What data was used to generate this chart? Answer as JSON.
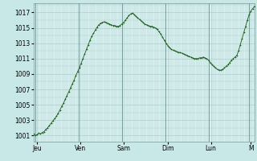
{
  "title": "",
  "background_color": "#c8e8e8",
  "plot_bg_color": "#d8f0f0",
  "line_color": "#1a5c1a",
  "marker_color": "#1a5c1a",
  "grid_color": "#aecece",
  "vline_color": "#7a9a9a",
  "yticks": [
    1001,
    1003,
    1005,
    1007,
    1009,
    1011,
    1013,
    1015,
    1017
  ],
  "ylim": [
    1000.2,
    1018.2
  ],
  "xlim": [
    0,
    122
  ],
  "x_day_labels": [
    {
      "label": "Jeu",
      "x": 2
    },
    {
      "label": "Ven",
      "x": 26
    },
    {
      "label": "Sam",
      "x": 50
    },
    {
      "label": "Dim",
      "x": 74
    },
    {
      "label": "Lun",
      "x": 98
    },
    {
      "label": "M",
      "x": 120
    }
  ],
  "x_vlines": [
    1,
    25,
    49,
    73,
    97,
    119
  ],
  "pressure_data": [
    1001.2,
    1001.0,
    1001.1,
    1001.3,
    1001.2,
    1001.4,
    1001.5,
    1001.8,
    1002.0,
    1002.3,
    1002.6,
    1002.9,
    1003.2,
    1003.5,
    1003.9,
    1004.3,
    1004.8,
    1005.2,
    1005.7,
    1006.2,
    1006.7,
    1007.2,
    1007.7,
    1008.2,
    1008.8,
    1009.3,
    1009.8,
    1010.4,
    1011.0,
    1011.6,
    1012.2,
    1012.8,
    1013.4,
    1013.9,
    1014.3,
    1014.7,
    1015.1,
    1015.4,
    1015.6,
    1015.7,
    1015.8,
    1015.7,
    1015.6,
    1015.5,
    1015.4,
    1015.3,
    1015.3,
    1015.2,
    1015.2,
    1015.3,
    1015.5,
    1015.7,
    1016.0,
    1016.3,
    1016.6,
    1016.8,
    1016.9,
    1016.7,
    1016.5,
    1016.3,
    1016.1,
    1015.9,
    1015.7,
    1015.5,
    1015.4,
    1015.3,
    1015.2,
    1015.2,
    1015.1,
    1015.0,
    1014.8,
    1014.5,
    1014.2,
    1013.8,
    1013.4,
    1013.0,
    1012.7,
    1012.4,
    1012.2,
    1012.1,
    1012.0,
    1011.9,
    1011.8,
    1011.8,
    1011.7,
    1011.6,
    1011.5,
    1011.4,
    1011.3,
    1011.2,
    1011.1,
    1011.0,
    1011.0,
    1011.0,
    1011.1,
    1011.1,
    1011.2,
    1011.1,
    1011.0,
    1010.8,
    1010.5,
    1010.2,
    1010.0,
    1009.8,
    1009.6,
    1009.5,
    1009.5,
    1009.6,
    1009.8,
    1010.0,
    1010.2,
    1010.5,
    1010.8,
    1011.0,
    1011.2,
    1011.4,
    1012.0,
    1012.8,
    1013.6,
    1014.4,
    1015.2,
    1016.0,
    1016.7,
    1017.2,
    1017.5,
    1017.8
  ]
}
